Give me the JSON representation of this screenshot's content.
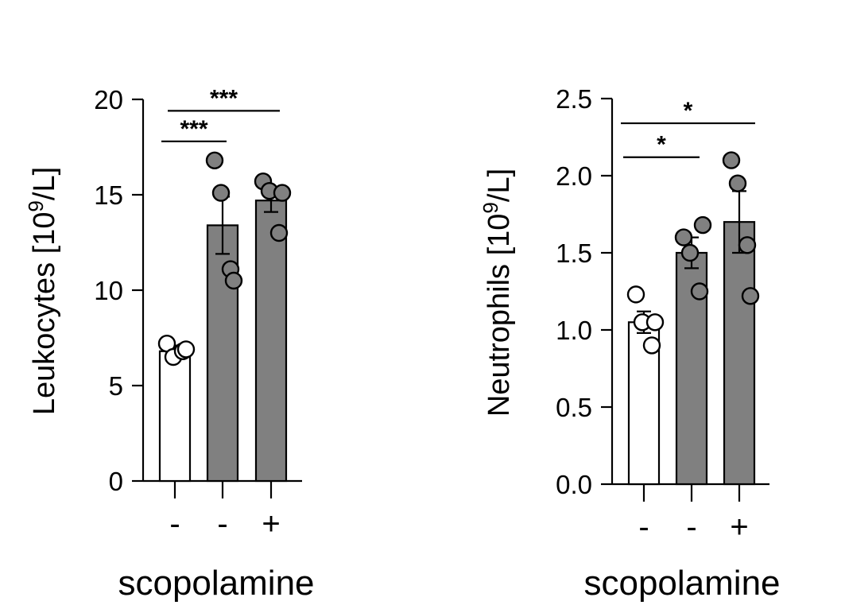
{
  "chart_data": [
    {
      "type": "bar",
      "categories": [
        "-",
        "-",
        "+"
      ],
      "values": [
        6.8,
        13.4,
        14.7
      ],
      "sem": [
        0.3,
        1.5,
        0.6
      ],
      "points": [
        [
          7.2,
          6.5,
          6.8,
          6.9
        ],
        [
          16.8,
          15.1,
          11.1,
          10.5
        ],
        [
          15.7,
          15.2,
          13.0,
          15.1
        ]
      ],
      "bar_colors": [
        "#ffffff",
        "#808080",
        "#808080"
      ],
      "point_colors": [
        "#ffffff",
        "#808080",
        "#808080"
      ],
      "ylabel": "Leukocytes [10",
      "ylabel_sup": "9",
      "ylabel_tail": "/L]",
      "xlabel": "scopolamine",
      "ylim": [
        0,
        20
      ],
      "yticks": [
        "0",
        "5",
        "10",
        "15",
        "20"
      ],
      "significance": [
        {
          "from": 0,
          "to": 1,
          "label": "***",
          "y": 17.8
        },
        {
          "from": 0,
          "to": 2,
          "label": "***",
          "y": 19.4
        }
      ]
    },
    {
      "type": "bar",
      "categories": [
        "-",
        "-",
        "+"
      ],
      "values": [
        1.05,
        1.5,
        1.7
      ],
      "sem": [
        0.07,
        0.1,
        0.2
      ],
      "points": [
        [
          1.23,
          1.05,
          0.9,
          1.05
        ],
        [
          1.6,
          1.5,
          1.25,
          1.68
        ],
        [
          2.1,
          1.95,
          1.55,
          1.22
        ]
      ],
      "bar_colors": [
        "#ffffff",
        "#808080",
        "#808080"
      ],
      "point_colors": [
        "#ffffff",
        "#808080",
        "#808080"
      ],
      "ylabel": "Neutrophils [10",
      "ylabel_sup": "9",
      "ylabel_tail": "/L]",
      "xlabel": "scopolamine",
      "ylim": [
        0,
        2.5
      ],
      "yticks": [
        "0.0",
        "0.5",
        "1.0",
        "1.5",
        "2.0",
        "2.5"
      ],
      "significance": [
        {
          "from": 0,
          "to": 1,
          "label": "*",
          "y": 2.12
        },
        {
          "from": 0,
          "to": 2,
          "label": "*",
          "y": 2.34
        }
      ]
    }
  ]
}
